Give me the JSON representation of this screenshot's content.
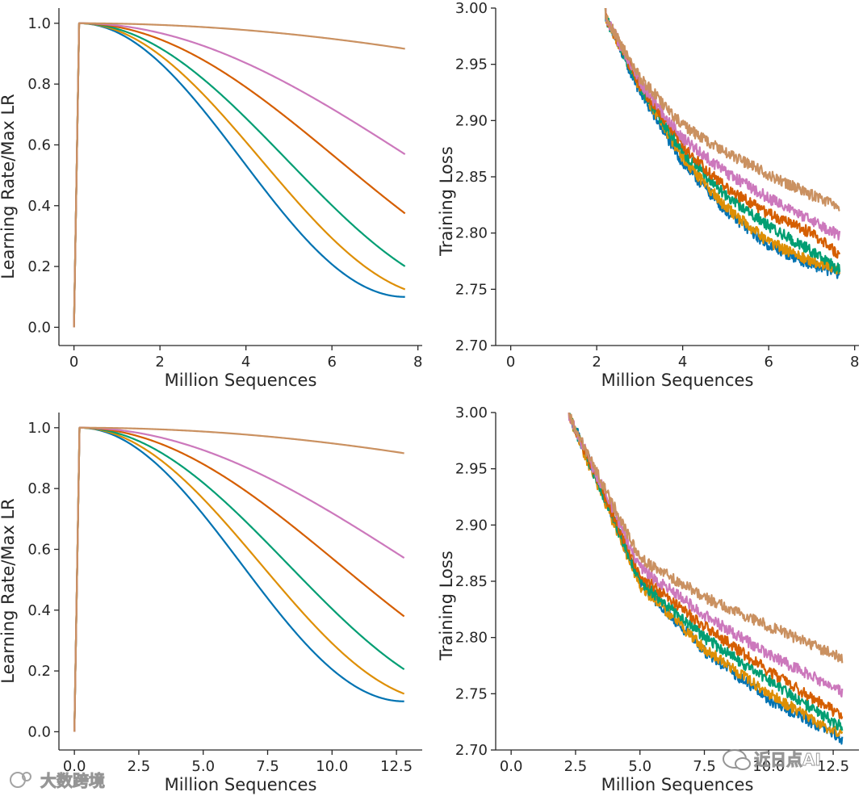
{
  "watermarks": {
    "left": "大数跨境",
    "right": "近日点AI"
  },
  "chart_data": [
    {
      "id": "lr-schedule-short",
      "type": "line",
      "xlabel": "Million Sequences",
      "ylabel": "Learning Rate/Max LR",
      "xlim": [
        -0.35,
        8.1
      ],
      "ylim": [
        -0.06,
        1.05
      ],
      "xticks": [
        0,
        2,
        4,
        6,
        8
      ],
      "xtick_labels": [
        "0",
        "2",
        "4",
        "6",
        "8"
      ],
      "yticks": [
        0.0,
        0.2,
        0.4,
        0.6,
        0.8,
        1.0
      ],
      "ytick_labels": [
        "0.0",
        "0.2",
        "0.4",
        "0.6",
        "0.8",
        "1.0"
      ],
      "warmup_end": 0.12,
      "x_end": 7.7,
      "series": [
        {
          "color": "#0173b2",
          "min_lr": 0.1,
          "cycle_length": 7.7
        },
        {
          "color": "#de8f05",
          "min_lr": 0.1,
          "cycle_length": 8.6
        },
        {
          "color": "#029e73",
          "min_lr": 0.1,
          "cycle_length": 9.8
        },
        {
          "color": "#d55e00",
          "min_lr": 0.1,
          "cycle_length": 12.2
        },
        {
          "color": "#cc78bc",
          "min_lr": 0.1,
          "cycle_length": 15.7
        },
        {
          "color": "#ca9161",
          "min_lr": 0.1,
          "cycle_length": 38.5
        }
      ]
    },
    {
      "id": "loss-short",
      "type": "line",
      "xlabel": "Million Sequences",
      "ylabel": "Training Loss",
      "xlim": [
        -0.35,
        8.1
      ],
      "ylim": [
        2.7,
        3.0
      ],
      "xticks": [
        0,
        2,
        4,
        6,
        8
      ],
      "xtick_labels": [
        "0",
        "2",
        "4",
        "6",
        "8"
      ],
      "yticks": [
        2.7,
        2.75,
        2.8,
        2.85,
        2.9,
        2.95,
        3.0
      ],
      "ytick_labels": [
        "2.70",
        "2.75",
        "2.80",
        "2.85",
        "2.90",
        "2.95",
        "3.00"
      ],
      "x_start": 2.05,
      "x_end": 7.65,
      "series": [
        {
          "color": "#0173b2",
          "points": [
            [
              2.1,
              3.0
            ],
            [
              3,
              2.926
            ],
            [
              4,
              2.862
            ],
            [
              5,
              2.82
            ],
            [
              6,
              2.789
            ],
            [
              7,
              2.772
            ],
            [
              7.65,
              2.764
            ]
          ]
        },
        {
          "color": "#de8f05",
          "points": [
            [
              2.1,
              3.0
            ],
            [
              3,
              2.93
            ],
            [
              4,
              2.866
            ],
            [
              5,
              2.823
            ],
            [
              6,
              2.792
            ],
            [
              7,
              2.775
            ],
            [
              7.65,
              2.768
            ]
          ]
        },
        {
          "color": "#029e73",
          "points": [
            [
              2.1,
              3.0
            ],
            [
              3,
              2.93
            ],
            [
              4,
              2.872
            ],
            [
              5,
              2.834
            ],
            [
              6,
              2.806
            ],
            [
              7,
              2.784
            ],
            [
              7.65,
              2.767
            ]
          ]
        },
        {
          "color": "#d55e00",
          "points": [
            [
              2.1,
              3.0
            ],
            [
              3,
              2.932
            ],
            [
              4,
              2.877
            ],
            [
              5,
              2.84
            ],
            [
              6,
              2.817
            ],
            [
              7,
              2.8
            ],
            [
              7.65,
              2.78
            ]
          ]
        },
        {
          "color": "#cc78bc",
          "points": [
            [
              2.1,
              3.0
            ],
            [
              3,
              2.934
            ],
            [
              4,
              2.884
            ],
            [
              5,
              2.854
            ],
            [
              6,
              2.831
            ],
            [
              7,
              2.811
            ],
            [
              7.65,
              2.798
            ]
          ]
        },
        {
          "color": "#ca9161",
          "points": [
            [
              2.1,
              3.0
            ],
            [
              3,
              2.938
            ],
            [
              4,
              2.896
            ],
            [
              5,
              2.871
            ],
            [
              6,
              2.852
            ],
            [
              7,
              2.834
            ],
            [
              7.65,
              2.823
            ]
          ]
        }
      ]
    },
    {
      "id": "lr-schedule-long",
      "type": "line",
      "xlabel": "Million Sequences",
      "ylabel": "Learning Rate/Max LR",
      "xlim": [
        -0.6,
        13.5
      ],
      "ylim": [
        -0.06,
        1.05
      ],
      "xticks": [
        0.0,
        2.5,
        5.0,
        7.5,
        10.0,
        12.5
      ],
      "xtick_labels": [
        "0.0",
        "2.5",
        "5.0",
        "7.5",
        "10.0",
        "12.5"
      ],
      "yticks": [
        0.0,
        0.2,
        0.4,
        0.6,
        0.8,
        1.0
      ],
      "ytick_labels": [
        "0.0",
        "0.2",
        "0.4",
        "0.6",
        "0.8",
        "1.0"
      ],
      "warmup_end": 0.2,
      "x_end": 12.8,
      "series": [
        {
          "color": "#0173b2",
          "min_lr": 0.1,
          "cycle_length": 12.8
        },
        {
          "color": "#de8f05",
          "min_lr": 0.1,
          "cycle_length": 14.3
        },
        {
          "color": "#029e73",
          "min_lr": 0.1,
          "cycle_length": 16.4
        },
        {
          "color": "#d55e00",
          "min_lr": 0.1,
          "cycle_length": 20.4
        },
        {
          "color": "#cc78bc",
          "min_lr": 0.1,
          "cycle_length": 26.2
        },
        {
          "color": "#ca9161",
          "min_lr": 0.1,
          "cycle_length": 64.0
        }
      ]
    },
    {
      "id": "loss-long",
      "type": "line",
      "xlabel": "Million Sequences",
      "ylabel": "Training Loss",
      "xlim": [
        -0.6,
        13.5
      ],
      "ylim": [
        2.7,
        3.0
      ],
      "xticks": [
        0.0,
        2.5,
        5.0,
        7.5,
        10.0,
        12.5
      ],
      "xtick_labels": [
        "0.0",
        "2.5",
        "5.0",
        "7.5",
        "10.0",
        "12.5"
      ],
      "yticks": [
        2.7,
        2.75,
        2.8,
        2.85,
        2.9,
        2.95,
        3.0
      ],
      "ytick_labels": [
        "2.70",
        "2.75",
        "2.80",
        "2.85",
        "2.90",
        "2.95",
        "3.00"
      ],
      "x_start": 2.1,
      "x_end": 12.85,
      "series": [
        {
          "color": "#0173b2",
          "points": [
            [
              2.2,
              3.0
            ],
            [
              3,
              2.96
            ],
            [
              5,
              2.848
            ],
            [
              7.5,
              2.788
            ],
            [
              10,
              2.745
            ],
            [
              12.85,
              2.71
            ]
          ]
        },
        {
          "color": "#de8f05",
          "points": [
            [
              2.2,
              3.0
            ],
            [
              3,
              2.955
            ],
            [
              5,
              2.846
            ],
            [
              7.5,
              2.79
            ],
            [
              10,
              2.75
            ],
            [
              12.85,
              2.712
            ]
          ]
        },
        {
          "color": "#029e73",
          "points": [
            [
              2.2,
              3.0
            ],
            [
              3,
              2.957
            ],
            [
              5,
              2.85
            ],
            [
              7.5,
              2.8
            ],
            [
              10,
              2.762
            ],
            [
              12.85,
              2.72
            ]
          ]
        },
        {
          "color": "#d55e00",
          "points": [
            [
              2.2,
              3.0
            ],
            [
              3,
              2.958
            ],
            [
              5,
              2.855
            ],
            [
              7.5,
              2.81
            ],
            [
              10,
              2.77
            ],
            [
              12.85,
              2.73
            ]
          ]
        },
        {
          "color": "#cc78bc",
          "points": [
            [
              2.2,
              3.0
            ],
            [
              3,
              2.96
            ],
            [
              5,
              2.862
            ],
            [
              7.5,
              2.82
            ],
            [
              10,
              2.785
            ],
            [
              12.85,
              2.752
            ]
          ]
        },
        {
          "color": "#ca9161",
          "points": [
            [
              2.2,
              3.0
            ],
            [
              3,
              2.962
            ],
            [
              5,
              2.87
            ],
            [
              7.5,
              2.836
            ],
            [
              10,
              2.81
            ],
            [
              12.85,
              2.782
            ]
          ]
        }
      ]
    }
  ]
}
